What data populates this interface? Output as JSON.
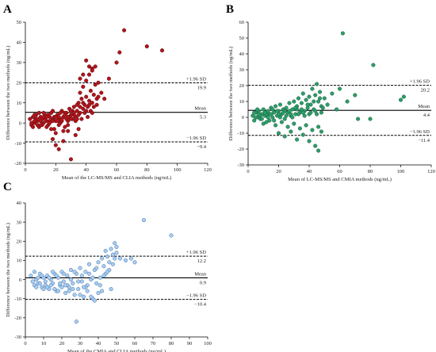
{
  "chart_data": [
    {
      "type": "scatter",
      "panel": "A",
      "xlabel": "Mean of the LC-MS/MS and CLIA methods (ng/mL)",
      "ylabel": "Difference between the two methods (ng/mL)",
      "xlim": [
        0,
        120
      ],
      "ylim": [
        -20,
        50
      ],
      "xticks": [
        0,
        20,
        40,
        60,
        80,
        100,
        120
      ],
      "yticks": [
        -20,
        -10,
        0,
        10,
        20,
        30,
        40,
        50
      ],
      "grid": false,
      "marker_color": "#b3141b",
      "marker_edge": "#5a0a0d",
      "mean": 5.3,
      "upper": 19.9,
      "lower": -9.4,
      "mean_label": "Mean",
      "mean_value_label": "5.3",
      "upper_label": "+1.96 SD",
      "upper_value_label": "19.9",
      "lower_label": "−1.96 SD",
      "lower_value_label": "−9.4",
      "points": [
        [
          3,
          2
        ],
        [
          4,
          -1
        ],
        [
          5,
          3
        ],
        [
          6,
          0
        ],
        [
          7,
          4
        ],
        [
          8,
          1
        ],
        [
          9,
          -2
        ],
        [
          10,
          3
        ],
        [
          11,
          2
        ],
        [
          12,
          0
        ],
        [
          13,
          4
        ],
        [
          14,
          1
        ],
        [
          15,
          -1
        ],
        [
          16,
          3
        ],
        [
          17,
          5
        ],
        [
          18,
          2
        ],
        [
          19,
          -3
        ],
        [
          20,
          1
        ],
        [
          21,
          4
        ],
        [
          22,
          2
        ],
        [
          23,
          0
        ],
        [
          24,
          6
        ],
        [
          25,
          3
        ],
        [
          26,
          -2
        ],
        [
          27,
          5
        ],
        [
          28,
          1
        ],
        [
          29,
          7
        ],
        [
          30,
          4
        ],
        [
          31,
          2
        ],
        [
          32,
          8
        ],
        [
          33,
          3
        ],
        [
          34,
          6
        ],
        [
          35,
          10
        ],
        [
          36,
          5
        ],
        [
          37,
          12
        ],
        [
          38,
          7
        ],
        [
          39,
          9
        ],
        [
          40,
          13
        ],
        [
          41,
          8
        ],
        [
          42,
          11
        ],
        [
          43,
          16
        ],
        [
          44,
          10
        ],
        [
          45,
          14
        ],
        [
          46,
          19
        ],
        [
          47,
          12
        ],
        [
          48,
          13
        ],
        [
          5,
          -2
        ],
        [
          7,
          2
        ],
        [
          9,
          5
        ],
        [
          11,
          -1
        ],
        [
          13,
          2
        ],
        [
          15,
          4
        ],
        [
          17,
          -3
        ],
        [
          19,
          3
        ],
        [
          21,
          1
        ],
        [
          23,
          5
        ],
        [
          25,
          -4
        ],
        [
          27,
          2
        ],
        [
          29,
          3
        ],
        [
          31,
          6
        ],
        [
          33,
          1
        ],
        [
          35,
          4
        ],
        [
          37,
          2
        ],
        [
          39,
          5
        ],
        [
          41,
          3
        ],
        [
          43,
          6
        ],
        [
          45,
          8
        ],
        [
          47,
          9
        ],
        [
          6,
          4
        ],
        [
          8,
          -1
        ],
        [
          10,
          1
        ],
        [
          12,
          3
        ],
        [
          14,
          -2
        ],
        [
          16,
          1
        ],
        [
          18,
          6
        ],
        [
          20,
          -5
        ],
        [
          22,
          3
        ],
        [
          24,
          1
        ],
        [
          26,
          5
        ],
        [
          28,
          -1
        ],
        [
          30,
          2
        ],
        [
          32,
          4
        ],
        [
          34,
          9
        ],
        [
          36,
          15
        ],
        [
          38,
          18
        ],
        [
          40,
          21
        ],
        [
          42,
          24
        ],
        [
          44,
          27
        ],
        [
          46,
          28
        ],
        [
          18,
          -8
        ],
        [
          20,
          -11
        ],
        [
          22,
          -13
        ],
        [
          25,
          -9
        ],
        [
          28,
          -4
        ],
        [
          30,
          -18
        ],
        [
          33,
          -6
        ],
        [
          35,
          -3
        ],
        [
          36,
          22
        ],
        [
          38,
          24
        ],
        [
          40,
          31
        ],
        [
          42,
          28
        ],
        [
          44,
          26
        ],
        [
          48,
          20
        ],
        [
          50,
          15
        ],
        [
          52,
          12
        ],
        [
          55,
          22
        ],
        [
          60,
          30
        ],
        [
          62,
          35
        ],
        [
          65,
          46
        ],
        [
          80,
          38
        ],
        [
          90,
          36
        ],
        [
          4,
          0
        ],
        [
          6,
          1
        ],
        [
          8,
          2
        ],
        [
          10,
          -1
        ],
        [
          12,
          5
        ],
        [
          14,
          3
        ],
        [
          16,
          0
        ],
        [
          18,
          1
        ],
        [
          20,
          3
        ],
        [
          22,
          -1
        ],
        [
          24,
          2
        ],
        [
          26,
          4
        ],
        [
          28,
          3
        ],
        [
          30,
          6
        ],
        [
          32,
          5
        ],
        [
          34,
          2
        ],
        [
          36,
          8
        ],
        [
          38,
          10
        ],
        [
          40,
          6
        ],
        [
          42,
          9
        ],
        [
          44,
          5
        ]
      ]
    },
    {
      "type": "scatter",
      "panel": "B",
      "xlabel": "Mean of LC-MS/MS and CMIA methods (ng/mL)",
      "ylabel": "Difference between the two methods (ng/mL)",
      "xlim": [
        0,
        120
      ],
      "ylim": [
        -30,
        60
      ],
      "xticks": [
        0,
        20,
        40,
        60,
        80,
        100,
        120
      ],
      "yticks": [
        -30,
        -20,
        -10,
        0,
        10,
        20,
        30,
        40,
        50,
        60
      ],
      "grid": false,
      "marker_color": "#2e9e6a",
      "marker_edge": "#145a3a",
      "mean": 4.4,
      "upper": 20.2,
      "lower": -11.4,
      "mean_label": "Mean",
      "mean_value_label": "4.4",
      "upper_label": "+1.96 SD",
      "upper_value_label": "20.2",
      "lower_label": "−1.96 SD",
      "lower_value_label": "−11.4",
      "points": [
        [
          3,
          1
        ],
        [
          4,
          -2
        ],
        [
          5,
          3
        ],
        [
          6,
          0
        ],
        [
          7,
          4
        ],
        [
          8,
          -1
        ],
        [
          9,
          2
        ],
        [
          10,
          5
        ],
        [
          11,
          1
        ],
        [
          12,
          -3
        ],
        [
          13,
          4
        ],
        [
          14,
          2
        ],
        [
          15,
          6
        ],
        [
          16,
          0
        ],
        [
          17,
          3
        ],
        [
          18,
          7
        ],
        [
          19,
          1
        ],
        [
          20,
          4
        ],
        [
          21,
          8
        ],
        [
          22,
          2
        ],
        [
          23,
          5
        ],
        [
          24,
          -1
        ],
        [
          25,
          6
        ],
        [
          26,
          3
        ],
        [
          27,
          9
        ],
        [
          28,
          1
        ],
        [
          29,
          5
        ],
        [
          30,
          10
        ],
        [
          31,
          2
        ],
        [
          32,
          7
        ],
        [
          33,
          12
        ],
        [
          34,
          3
        ],
        [
          35,
          9
        ],
        [
          36,
          15
        ],
        [
          37,
          4
        ],
        [
          38,
          11
        ],
        [
          39,
          6
        ],
        [
          40,
          13
        ],
        [
          41,
          8
        ],
        [
          42,
          18
        ],
        [
          43,
          5
        ],
        [
          44,
          14
        ],
        [
          45,
          21
        ],
        [
          46,
          10
        ],
        [
          47,
          16
        ],
        [
          48,
          7
        ],
        [
          4,
          3
        ],
        [
          6,
          5
        ],
        [
          8,
          1
        ],
        [
          10,
          -4
        ],
        [
          12,
          2
        ],
        [
          14,
          -2
        ],
        [
          16,
          5
        ],
        [
          18,
          -5
        ],
        [
          20,
          2
        ],
        [
          22,
          -3
        ],
        [
          24,
          4
        ],
        [
          26,
          -6
        ],
        [
          28,
          2
        ],
        [
          30,
          -4
        ],
        [
          32,
          5
        ],
        [
          34,
          -7
        ],
        [
          36,
          3
        ],
        [
          38,
          -5
        ],
        [
          40,
          2
        ],
        [
          42,
          -8
        ],
        [
          44,
          4
        ],
        [
          46,
          -6
        ],
        [
          48,
          3
        ],
        [
          20,
          -10
        ],
        [
          24,
          -12
        ],
        [
          28,
          -9
        ],
        [
          32,
          -14
        ],
        [
          36,
          -11
        ],
        [
          40,
          -15
        ],
        [
          44,
          -18
        ],
        [
          46,
          -21
        ],
        [
          48,
          -9
        ],
        [
          50,
          12
        ],
        [
          52,
          8
        ],
        [
          55,
          15
        ],
        [
          58,
          5
        ],
        [
          60,
          18
        ],
        [
          62,
          53
        ],
        [
          65,
          10
        ],
        [
          70,
          14
        ],
        [
          72,
          -1
        ],
        [
          80,
          -1
        ],
        [
          82,
          33
        ],
        [
          100,
          11
        ],
        [
          102,
          13
        ],
        [
          5,
          0
        ],
        [
          7,
          2
        ],
        [
          9,
          -1
        ],
        [
          11,
          3
        ],
        [
          13,
          0
        ],
        [
          15,
          2
        ],
        [
          17,
          -2
        ],
        [
          19,
          4
        ],
        [
          21,
          0
        ],
        [
          23,
          3
        ],
        [
          25,
          1
        ],
        [
          27,
          4
        ],
        [
          29,
          0
        ],
        [
          31,
          6
        ],
        [
          33,
          2
        ],
        [
          35,
          5
        ],
        [
          37,
          1
        ],
        [
          39,
          8
        ],
        [
          41,
          3
        ],
        [
          43,
          10
        ],
        [
          45,
          2
        ],
        [
          47,
          12
        ],
        [
          49,
          6
        ]
      ]
    },
    {
      "type": "scatter",
      "panel": "C",
      "xlabel": "Mean of the CMIA and CLIA methods (ng/mL)",
      "ylabel": "Difference between the two methods (ng/mL)",
      "xlim": [
        0,
        100
      ],
      "ylim": [
        -30,
        40
      ],
      "xticks": [
        0,
        10,
        20,
        30,
        40,
        50,
        60,
        70,
        80,
        90,
        100
      ],
      "yticks": [
        -30,
        -20,
        -10,
        0,
        10,
        20,
        30,
        40
      ],
      "grid": false,
      "marker_color": "#a9cdf0",
      "marker_edge": "#3e6fa8",
      "mean": 0.9,
      "upper": 12.2,
      "lower": -10.4,
      "mean_label": "Mean",
      "mean_value_label": "0.9",
      "upper_label": "+1.96 SD",
      "upper_value_label": "12.2",
      "lower_label": "−1.96 SD",
      "lower_value_label": "−10.4",
      "points": [
        [
          3,
          2
        ],
        [
          4,
          -1
        ],
        [
          5,
          4
        ],
        [
          6,
          0
        ],
        [
          7,
          -2
        ],
        [
          8,
          3
        ],
        [
          9,
          -4
        ],
        [
          10,
          1
        ],
        [
          11,
          -3
        ],
        [
          12,
          2
        ],
        [
          13,
          -5
        ],
        [
          14,
          0
        ],
        [
          15,
          -2
        ],
        [
          16,
          3
        ],
        [
          17,
          -6
        ],
        [
          18,
          1
        ],
        [
          19,
          -3
        ],
        [
          20,
          4
        ],
        [
          21,
          -1
        ],
        [
          22,
          -7
        ],
        [
          23,
          2
        ],
        [
          24,
          -4
        ],
        [
          25,
          5
        ],
        [
          26,
          -2
        ],
        [
          27,
          -8
        ],
        [
          28,
          3
        ],
        [
          29,
          -5
        ],
        [
          30,
          6
        ],
        [
          31,
          -1
        ],
        [
          32,
          -9
        ],
        [
          33,
          4
        ],
        [
          34,
          -3
        ],
        [
          35,
          8
        ],
        [
          36,
          0
        ],
        [
          37,
          -10
        ],
        [
          38,
          5
        ],
        [
          39,
          -2
        ],
        [
          40,
          9
        ],
        [
          41,
          1
        ],
        [
          42,
          -6
        ],
        [
          43,
          7
        ],
        [
          44,
          3
        ],
        [
          45,
          12
        ],
        [
          46,
          5
        ],
        [
          47,
          16
        ],
        [
          48,
          8
        ],
        [
          49,
          19
        ],
        [
          50,
          17
        ],
        [
          5,
          -3
        ],
        [
          7,
          1
        ],
        [
          9,
          2
        ],
        [
          11,
          -1
        ],
        [
          13,
          1
        ],
        [
          15,
          4
        ],
        [
          17,
          2
        ],
        [
          19,
          -2
        ],
        [
          21,
          3
        ],
        [
          23,
          -3
        ],
        [
          25,
          0
        ],
        [
          27,
          4
        ],
        [
          29,
          -1
        ],
        [
          31,
          2
        ],
        [
          33,
          -4
        ],
        [
          35,
          3
        ],
        [
          37,
          1
        ],
        [
          39,
          6
        ],
        [
          41,
          -3
        ],
        [
          43,
          2
        ],
        [
          45,
          4
        ],
        [
          47,
          -5
        ],
        [
          49,
          11
        ],
        [
          6,
          -4
        ],
        [
          8,
          -2
        ],
        [
          10,
          -5
        ],
        [
          12,
          -4
        ],
        [
          14,
          -3
        ],
        [
          16,
          -5
        ],
        [
          18,
          -6
        ],
        [
          20,
          -4
        ],
        [
          22,
          -3
        ],
        [
          24,
          -6
        ],
        [
          26,
          -5
        ],
        [
          28,
          -22
        ],
        [
          30,
          -8
        ],
        [
          32,
          -4
        ],
        [
          34,
          -6
        ],
        [
          36,
          -9
        ],
        [
          38,
          -11
        ],
        [
          40,
          -7
        ],
        [
          55,
          10
        ],
        [
          60,
          9
        ],
        [
          65,
          31
        ],
        [
          80,
          23
        ],
        [
          42,
          11
        ],
        [
          44,
          15
        ],
        [
          46,
          9
        ],
        [
          48,
          13
        ],
        [
          50,
          14
        ],
        [
          52,
          11
        ],
        [
          58,
          11
        ]
      ]
    }
  ]
}
